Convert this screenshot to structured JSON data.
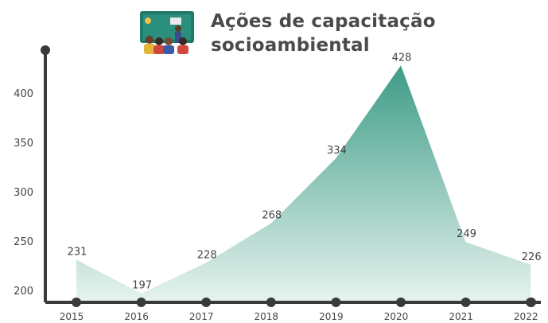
{
  "title_lines": [
    "Ações de capacitação",
    "socioambiental"
  ],
  "colors": {
    "area_top": "#3d9c86",
    "area_bottom": "#e7f3ef",
    "axis": "#3a3a3a",
    "text": "#444444",
    "title": "#4a4a4a"
  },
  "logo_icon": "people-meeting-icon",
  "chart_data": {
    "type": "area",
    "title": "Ações de capacitação socioambiental",
    "x": [
      "2015",
      "2016",
      "2017",
      "2018",
      "2019",
      "2020",
      "2021",
      "2022"
    ],
    "values": [
      231,
      197,
      228,
      268,
      334,
      428,
      249,
      226
    ],
    "yticks": [
      200,
      250,
      300,
      350,
      400
    ],
    "ylim": [
      188,
      440
    ],
    "grid": false,
    "legend": "none"
  }
}
